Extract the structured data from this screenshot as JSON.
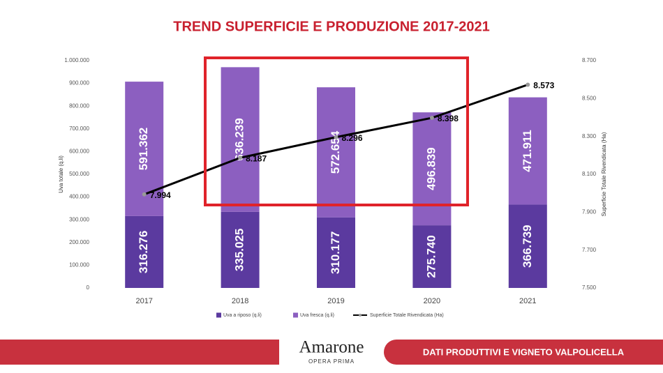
{
  "chart_data": {
    "type": "bar",
    "title": "TREND SUPERFICIE E PRODUZIONE 2017-2021",
    "categories": [
      "2017",
      "2018",
      "2019",
      "2020",
      "2021"
    ],
    "series": [
      {
        "name": "Uva a riposo (q.li)",
        "type": "bar",
        "color": "#5b3a9f",
        "values": [
          316276,
          335025,
          310177,
          275740,
          366739
        ],
        "value_labels": [
          "316.276",
          "335.025",
          "310.177",
          "275.740",
          "366.739"
        ]
      },
      {
        "name": "Uva fresca (q.li)",
        "type": "bar",
        "color": "#8c5fc0",
        "values": [
          591362,
          636239,
          572654,
          496839,
          471911
        ],
        "value_labels": [
          "591.362",
          "636.239",
          "572.654",
          "496.839",
          "471.911"
        ]
      },
      {
        "name": "Superficie Totale Rivendicata (Ha)",
        "type": "line",
        "axis": "y2",
        "color": "#000000",
        "values": [
          7994,
          8187,
          8296,
          8398,
          8573
        ],
        "value_labels": [
          "7.994",
          "8.187",
          "8.296",
          "8.398",
          "8.573"
        ]
      }
    ],
    "ylabel": "Uva totale (q.li)",
    "y2label": "Superficie Totale Rivendicata (Ha)",
    "ylim": [
      0,
      1000000
    ],
    "yticks": [
      0,
      {
        "value": 100000,
        "label": "100.000"
      },
      {
        "value": 200000,
        "label": "200.000"
      },
      {
        "value": 300000,
        "label": "300.000"
      },
      {
        "value": 400000,
        "label": "400.000"
      },
      {
        "value": 500000,
        "label": "500.000"
      },
      {
        "value": 600000,
        "label": "600.000"
      },
      {
        "value": 700000,
        "label": "700.000"
      },
      {
        "value": 800000,
        "label": "800.000"
      },
      {
        "value": 900000,
        "label": "900.000"
      },
      {
        "value": 1000000,
        "label": "1.000.000"
      }
    ],
    "y2lim": [
      7500,
      8700
    ],
    "y2ticks": [
      {
        "value": 7500,
        "label": "7.500"
      },
      {
        "value": 7700,
        "label": "7.700"
      },
      {
        "value": 7900,
        "label": "7.900"
      },
      {
        "value": 8100,
        "label": "8.100"
      },
      {
        "value": 8300,
        "label": "8.300"
      },
      {
        "value": 8500,
        "label": "8.500"
      },
      {
        "value": 8700,
        "label": "8.700"
      }
    ],
    "legend": "bottom"
  },
  "footer": {
    "brand": "Amarone",
    "brand_subtitle": "OPERA PRIMA",
    "section": "DATI PRODUTTIVI E VIGNETO VALPOLICELLA"
  }
}
